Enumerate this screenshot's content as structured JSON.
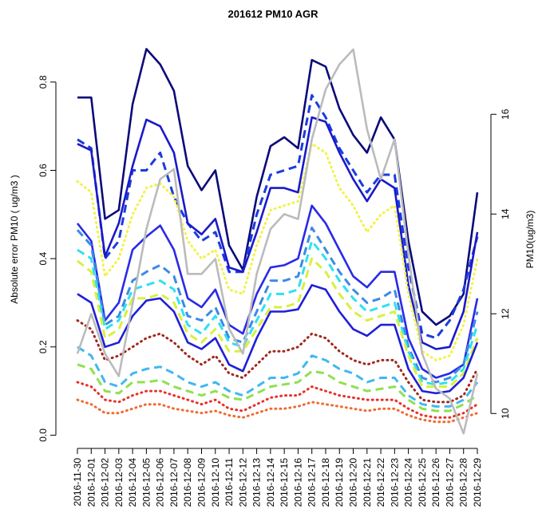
{
  "chart_data": {
    "type": "line",
    "title": "201612 PM10 AGR",
    "y_label": "Absolute error PM10 ( ug/m3 )",
    "y2_label": "PM10(ug/m3)",
    "categories": [
      "2016-11-30",
      "2016-12-01",
      "2016-12-02",
      "2016-12-03",
      "2016-12-04",
      "2016-12-05",
      "2016-12-06",
      "2016-12-07",
      "2016-12-08",
      "2016-12-09",
      "2016-12-10",
      "2016-12-11",
      "2016-12-12",
      "2016-12-13",
      "2016-12-14",
      "2016-12-15",
      "2016-12-16",
      "2016-12-17",
      "2016-12-18",
      "2016-12-19",
      "2016-12-20",
      "2016-12-21",
      "2016-12-22",
      "2016-12-23",
      "2016-12-24",
      "2016-12-25",
      "2016-12-26",
      "2016-12-27",
      "2016-12-28",
      "2016-12-29"
    ],
    "ylim": [
      -0.03,
      0.91
    ],
    "yticks": [
      {
        "value": 0,
        "label": "0.0"
      },
      0.2,
      0.4,
      0.6,
      0.8
    ],
    "y2lim": [
      9.3,
      17.62
    ],
    "y2ticks": [
      10,
      12,
      14,
      16
    ],
    "series": [
      {
        "color": "#0a0a7a",
        "dash": "solid",
        "values": [
          0.765,
          0.765,
          0.49,
          0.51,
          0.75,
          0.875,
          0.84,
          0.78,
          0.61,
          0.555,
          0.6,
          0.43,
          0.375,
          0.54,
          0.655,
          0.675,
          0.65,
          0.85,
          0.835,
          0.74,
          0.68,
          0.64,
          0.72,
          0.67,
          0.44,
          0.28,
          0.25,
          0.27,
          0.32,
          0.55
        ]
      },
      {
        "color": "#1a3cde",
        "dash": "dashed",
        "values": [
          0.67,
          0.65,
          0.4,
          0.44,
          0.6,
          0.6,
          0.64,
          0.54,
          0.48,
          0.44,
          0.46,
          0.37,
          0.37,
          0.5,
          0.59,
          0.6,
          0.61,
          0.77,
          0.72,
          0.65,
          0.6,
          0.55,
          0.59,
          0.59,
          0.38,
          0.23,
          0.22,
          0.26,
          0.33,
          0.45
        ]
      },
      {
        "color": "#1a1ac8",
        "dash": "solid",
        "values": [
          0.66,
          0.645,
          0.405,
          0.48,
          0.61,
          0.715,
          0.7,
          0.64,
          0.48,
          0.455,
          0.49,
          0.38,
          0.37,
          0.46,
          0.56,
          0.56,
          0.55,
          0.72,
          0.71,
          0.64,
          0.58,
          0.53,
          0.58,
          0.56,
          0.34,
          0.21,
          0.195,
          0.2,
          0.28,
          0.46
        ]
      },
      {
        "color": "#f2f24a",
        "dash": "dotted",
        "values": [
          0.575,
          0.55,
          0.36,
          0.4,
          0.5,
          0.56,
          0.57,
          0.54,
          0.44,
          0.4,
          0.42,
          0.33,
          0.32,
          0.43,
          0.51,
          0.52,
          0.53,
          0.66,
          0.64,
          0.56,
          0.52,
          0.46,
          0.5,
          0.52,
          0.32,
          0.19,
          0.17,
          0.18,
          0.25,
          0.4
        ]
      },
      {
        "color": "#2a2ae6",
        "dash": "solid",
        "values": [
          0.48,
          0.44,
          0.26,
          0.3,
          0.42,
          0.45,
          0.475,
          0.42,
          0.31,
          0.29,
          0.33,
          0.25,
          0.23,
          0.32,
          0.38,
          0.385,
          0.4,
          0.52,
          0.48,
          0.42,
          0.36,
          0.335,
          0.37,
          0.37,
          0.22,
          0.15,
          0.13,
          0.14,
          0.16,
          0.31
        ]
      },
      {
        "color": "#3a8ae6",
        "dash": "dashed",
        "values": [
          0.465,
          0.43,
          0.25,
          0.27,
          0.35,
          0.37,
          0.385,
          0.36,
          0.27,
          0.26,
          0.29,
          0.22,
          0.21,
          0.28,
          0.35,
          0.35,
          0.36,
          0.47,
          0.42,
          0.37,
          0.33,
          0.3,
          0.31,
          0.33,
          0.2,
          0.13,
          0.12,
          0.13,
          0.16,
          0.28
        ]
      },
      {
        "color": "#30e0f0",
        "dash": "dashed",
        "values": [
          0.42,
          0.4,
          0.24,
          0.26,
          0.33,
          0.34,
          0.35,
          0.33,
          0.25,
          0.23,
          0.27,
          0.21,
          0.2,
          0.26,
          0.32,
          0.32,
          0.33,
          0.44,
          0.4,
          0.35,
          0.31,
          0.28,
          0.29,
          0.3,
          0.19,
          0.12,
          0.115,
          0.12,
          0.15,
          0.25
        ]
      },
      {
        "color": "#d8f040",
        "dash": "dashed",
        "values": [
          0.395,
          0.37,
          0.22,
          0.24,
          0.31,
          0.31,
          0.32,
          0.3,
          0.23,
          0.21,
          0.24,
          0.19,
          0.19,
          0.24,
          0.29,
          0.29,
          0.3,
          0.4,
          0.37,
          0.32,
          0.28,
          0.26,
          0.27,
          0.28,
          0.18,
          0.11,
          0.11,
          0.11,
          0.14,
          0.22
        ]
      },
      {
        "color": "#1f1fd8",
        "dash": "solid",
        "values": [
          0.32,
          0.3,
          0.2,
          0.21,
          0.27,
          0.305,
          0.31,
          0.28,
          0.21,
          0.195,
          0.22,
          0.16,
          0.145,
          0.22,
          0.28,
          0.28,
          0.285,
          0.34,
          0.33,
          0.28,
          0.24,
          0.225,
          0.25,
          0.25,
          0.15,
          0.1,
          0.095,
          0.1,
          0.13,
          0.21
        ]
      },
      {
        "color": "#a0281e",
        "dash": "dotted",
        "values": [
          0.26,
          0.24,
          0.17,
          0.18,
          0.2,
          0.22,
          0.23,
          0.21,
          0.18,
          0.16,
          0.18,
          0.14,
          0.13,
          0.16,
          0.19,
          0.19,
          0.2,
          0.23,
          0.22,
          0.19,
          0.17,
          0.16,
          0.17,
          0.17,
          0.12,
          0.08,
          0.075,
          0.075,
          0.09,
          0.15
        ]
      },
      {
        "color": "#40b8f0",
        "dash": "dashed",
        "values": [
          0.2,
          0.18,
          0.12,
          0.11,
          0.14,
          0.15,
          0.155,
          0.14,
          0.12,
          0.11,
          0.12,
          0.1,
          0.09,
          0.11,
          0.13,
          0.13,
          0.14,
          0.18,
          0.17,
          0.15,
          0.14,
          0.12,
          0.13,
          0.13,
          0.09,
          0.07,
          0.065,
          0.065,
          0.08,
          0.12
        ]
      },
      {
        "color": "#90e050",
        "dash": "dashed",
        "values": [
          0.16,
          0.15,
          0.1,
          0.095,
          0.12,
          0.12,
          0.125,
          0.11,
          0.1,
          0.09,
          0.1,
          0.085,
          0.08,
          0.095,
          0.11,
          0.115,
          0.12,
          0.145,
          0.14,
          0.12,
          0.11,
          0.1,
          0.105,
          0.11,
          0.08,
          0.06,
          0.055,
          0.055,
          0.07,
          0.09
        ]
      },
      {
        "color": "#e8302a",
        "dash": "dotted",
        "values": [
          0.12,
          0.11,
          0.08,
          0.075,
          0.09,
          0.1,
          0.1,
          0.09,
          0.08,
          0.07,
          0.08,
          0.06,
          0.055,
          0.07,
          0.085,
          0.09,
          0.09,
          0.11,
          0.1,
          0.09,
          0.085,
          0.08,
          0.08,
          0.08,
          0.06,
          0.045,
          0.04,
          0.04,
          0.05,
          0.07
        ]
      },
      {
        "color": "#f06a30",
        "dash": "dotted",
        "values": [
          0.08,
          0.07,
          0.05,
          0.05,
          0.06,
          0.07,
          0.07,
          0.06,
          0.055,
          0.05,
          0.055,
          0.045,
          0.04,
          0.05,
          0.06,
          0.06,
          0.065,
          0.075,
          0.07,
          0.065,
          0.06,
          0.055,
          0.06,
          0.06,
          0.045,
          0.035,
          0.03,
          0.03,
          0.04,
          0.05
        ]
      },
      {
        "color": "#bbbbbb",
        "dash": "solid",
        "axis": "y2",
        "values": [
          11.2,
          12,
          11.2,
          10.75,
          12.2,
          13.7,
          14.7,
          14.9,
          12.8,
          12.8,
          13.1,
          11.7,
          11.2,
          12.8,
          13.7,
          14,
          13.9,
          15.5,
          16.5,
          17,
          17.3,
          15.7,
          14.7,
          15.5,
          13.2,
          11.2,
          10.5,
          10.3,
          9.6,
          10.8
        ]
      }
    ]
  }
}
